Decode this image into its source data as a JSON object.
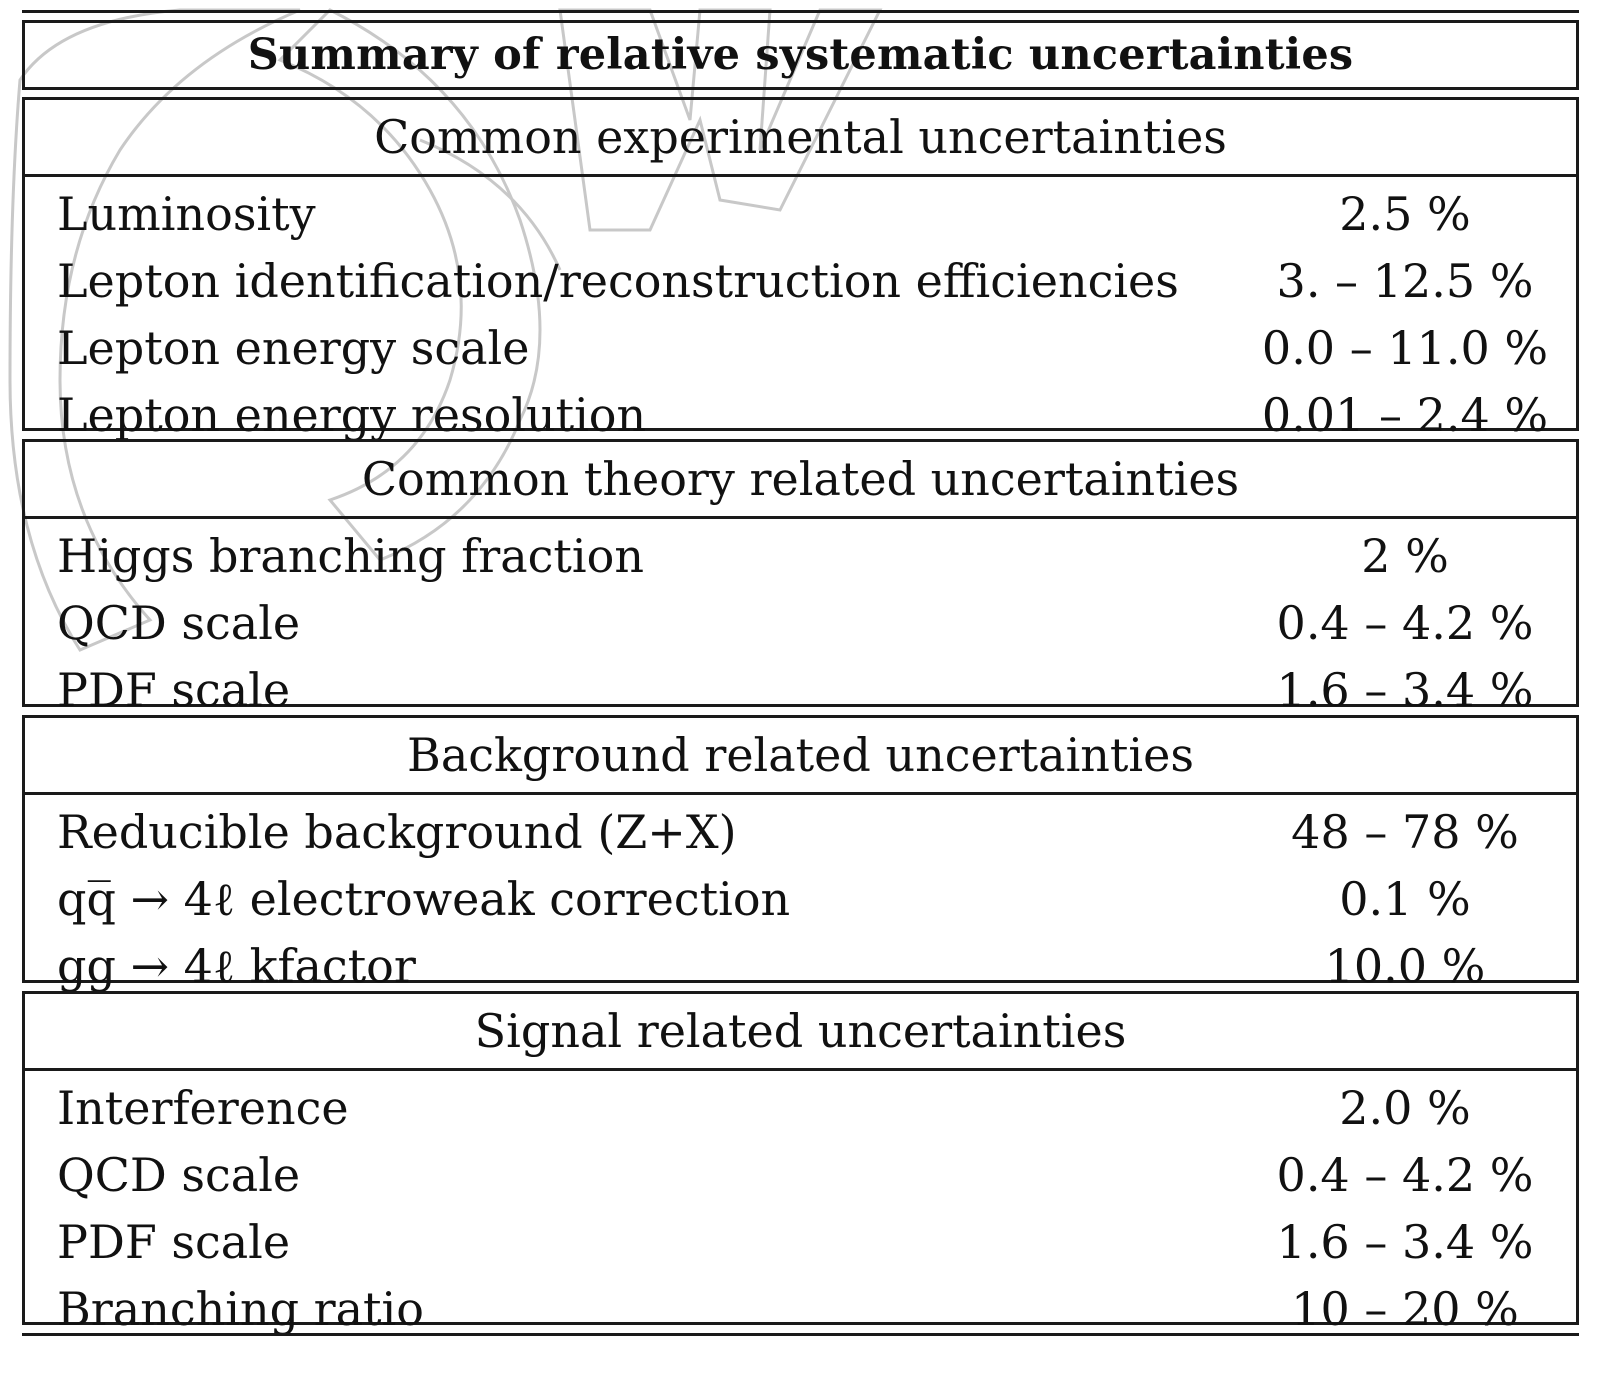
{
  "table": {
    "title": "Summary of relative systematic uncertainties",
    "sections": [
      {
        "header": "Common experimental uncertainties",
        "rows": [
          {
            "label": "Luminosity",
            "value": "2.5 %"
          },
          {
            "label": "Lepton identification/reconstruction efficiencies",
            "value": "3. – 12.5 %"
          },
          {
            "label": "Lepton energy scale",
            "value": "0.0 – 11.0 %"
          },
          {
            "label": "Lepton energy resolution",
            "value": "0.01 – 2.4 %"
          }
        ]
      },
      {
        "header": "Common theory related uncertainties",
        "rows": [
          {
            "label": "Higgs branching fraction",
            "value": "2 %"
          },
          {
            "label": "QCD scale",
            "value": "0.4 – 4.2 %"
          },
          {
            "label": "PDF scale",
            "value": "1.6 – 3.4 %"
          }
        ]
      },
      {
        "header": "Background related uncertainties",
        "rows": [
          {
            "label": "Reducible background (Z+X)",
            "value": "48 – 78 %"
          },
          {
            "label": "qq̅ → 4ℓ electroweak correction",
            "value": "0.1 %"
          },
          {
            "label": "gg → 4ℓ kfactor",
            "value": "10.0 %"
          }
        ]
      },
      {
        "header": "Signal related uncertainties",
        "rows": [
          {
            "label": "Interference",
            "value": "2.0 %"
          },
          {
            "label": "QCD scale",
            "value": "0.4 – 4.2 %"
          },
          {
            "label": "PDF scale",
            "value": "1.6 – 3.4 %"
          },
          {
            "label": "Branching ratio",
            "value": "10 – 20 %"
          }
        ]
      }
    ]
  },
  "colors": {
    "rule": "#1a1a1a",
    "text": "#111111",
    "watermark": "#c8c8c8"
  }
}
